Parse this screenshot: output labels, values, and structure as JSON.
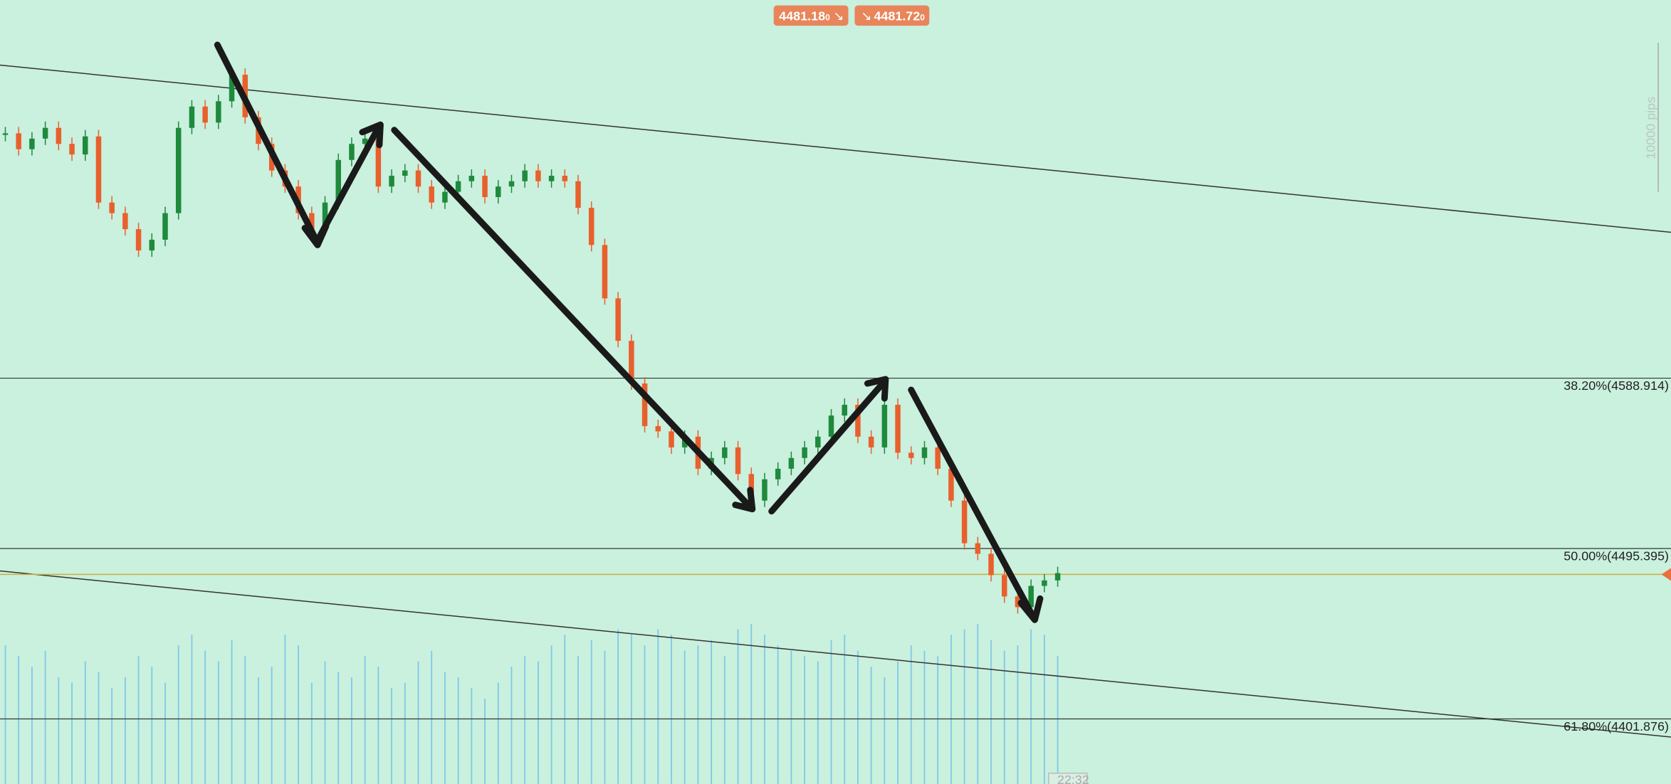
{
  "toolbar": {
    "bid": {
      "price": "4481.18",
      "digit": "0"
    },
    "ask": {
      "price": "4481.72",
      "digit": "0"
    }
  },
  "pips_label": "10000 pips",
  "time_label": "22:32",
  "current_price": 4481.18,
  "levels": [
    {
      "label": "38.20%(4588.914)",
      "price": 4588.914
    },
    {
      "label": "50.00%(4495.395)",
      "price": 4495.395
    },
    {
      "label": "61.80%(4401.876)",
      "price": 4401.876
    }
  ],
  "closes": [
    4723.3,
    4714.6,
    4720.4,
    4726.3,
    4717.5,
    4711.7,
    4721.6,
    4685.3,
    4679.5,
    4670.7,
    4659.0,
    4664.9,
    4679.5,
    4726.3,
    4738.0,
    4729.2,
    4740.9,
    4755.5,
    4732.1,
    4717.5,
    4702.9,
    4694.1,
    4679.5,
    4670.7,
    4685.3,
    4708.7,
    4717.5,
    4720.4,
    4694.1,
    4700.0,
    4702.9,
    4694.1,
    4685.3,
    4691.2,
    4697.0,
    4700.0,
    4688.3,
    4694.1,
    4697.0,
    4702.9,
    4697.0,
    4700.0,
    4697.0,
    4682.4,
    4662.0,
    4632.7,
    4609.4,
    4586.0,
    4562.6,
    4559.7,
    4550.9,
    4556.8,
    4539.2,
    4545.1,
    4550.9,
    4536.3,
    4521.7,
    4533.4,
    4539.2,
    4545.1,
    4550.9,
    4556.8,
    4568.4,
    4574.3,
    4556.8,
    4550.9,
    4574.3,
    4548.0,
    4545.1,
    4550.9,
    4539.2,
    4521.7,
    4498.3,
    4492.5,
    4480.8,
    4469.1,
    4463.2,
    4474.9,
    4477.9,
    4481.9
  ],
  "volume": [
    130,
    120,
    110,
    125,
    100,
    95,
    115,
    105,
    90,
    100,
    120,
    110,
    95,
    130,
    140,
    125,
    115,
    135,
    120,
    100,
    110,
    140,
    130,
    95,
    115,
    105,
    100,
    120,
    110,
    90,
    95,
    115,
    125,
    105,
    100,
    90,
    80,
    95,
    110,
    120,
    115,
    130,
    140,
    120,
    135,
    125,
    145,
    140,
    130,
    145,
    140,
    125,
    130,
    135,
    120,
    145,
    150,
    140,
    130,
    125,
    120,
    115,
    135,
    140,
    125,
    110,
    100,
    115,
    130,
    125,
    120,
    140,
    145,
    150,
    135,
    125,
    130,
    145,
    140,
    120
  ]
}
